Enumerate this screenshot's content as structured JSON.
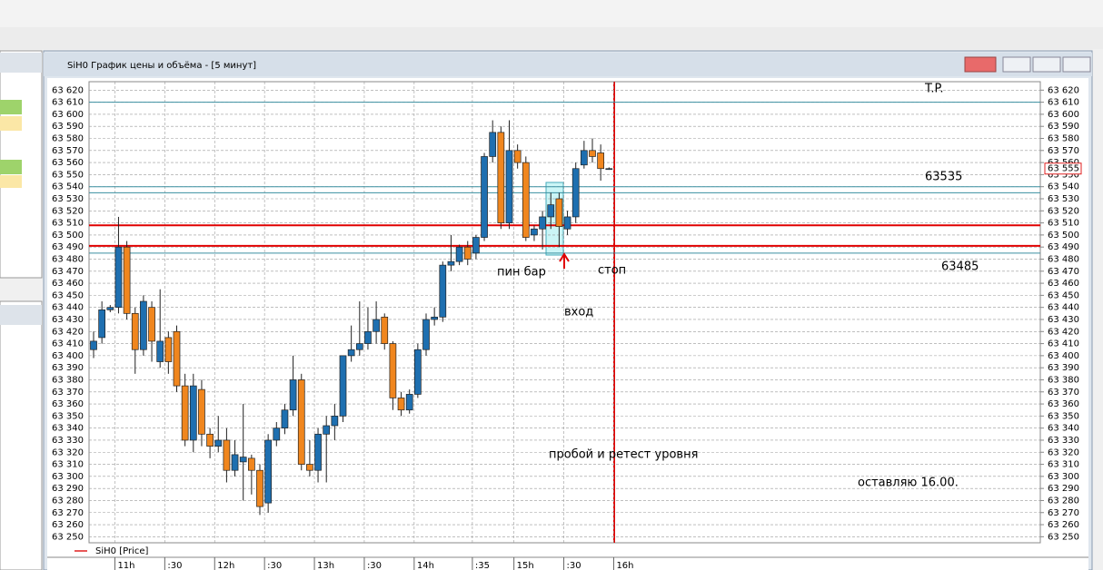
{
  "window_title": "SiH0 График цены и объёма - [5 минут]",
  "chart_data": {
    "type": "candlestick",
    "series": [
      {
        "name": "SiH0 [Price]",
        "color": "#e02020",
        "up_color": "#1e6fb0",
        "down_color": "#f0861e",
        "open": [
          63405,
          63415,
          63438,
          63440,
          63490,
          63435,
          63405,
          63440,
          63395,
          63415,
          63420,
          63375,
          63330,
          63372,
          63335,
          63325,
          63330,
          63305,
          63312,
          63315,
          63305,
          63278,
          63330,
          63340,
          63355,
          63380,
          63310,
          63305,
          63335,
          63342,
          63350,
          63400,
          63405,
          63410,
          63420,
          63432,
          63410,
          63365,
          63355,
          63368,
          63405,
          63430,
          63432,
          63475,
          63478,
          63490,
          63485,
          63498,
          63565,
          63585,
          63510,
          63570,
          63560,
          63500,
          63505,
          63515,
          63530,
          63505,
          63515,
          63558,
          63570,
          63568,
          63555,
          null
        ],
        "high": [
          63420,
          63445,
          63442,
          63515,
          63495,
          63440,
          63450,
          63445,
          63455,
          63420,
          63425,
          63385,
          63385,
          63380,
          63340,
          63350,
          63340,
          63330,
          63360,
          63318,
          63310,
          63335,
          63345,
          63360,
          63400,
          63385,
          63330,
          63340,
          63350,
          63360,
          63400,
          63425,
          63445,
          63440,
          63445,
          63435,
          63412,
          63370,
          63372,
          63410,
          63435,
          63440,
          63478,
          63500,
          63492,
          63495,
          63500,
          63568,
          63595,
          63590,
          63595,
          63575,
          63565,
          63508,
          63520,
          63535,
          63535,
          63520,
          63560,
          63578,
          63580,
          63575,
          63556,
          null
        ],
        "low": [
          63398,
          63410,
          63436,
          63435,
          63430,
          63385,
          63400,
          63395,
          63390,
          63385,
          63370,
          63325,
          63320,
          63325,
          63315,
          63320,
          63295,
          63300,
          63280,
          63285,
          63268,
          63270,
          63325,
          63335,
          63350,
          63305,
          63300,
          63295,
          63295,
          63330,
          63345,
          63395,
          63400,
          63405,
          63410,
          63405,
          63355,
          63350,
          63352,
          63365,
          63400,
          63425,
          63428,
          63470,
          63475,
          63475,
          63480,
          63495,
          63560,
          63505,
          63505,
          63555,
          63495,
          63495,
          63488,
          63505,
          63490,
          63500,
          63510,
          63555,
          63560,
          63545,
          63554,
          null
        ],
        "close": [
          63412,
          63438,
          63440,
          63490,
          63435,
          63405,
          63445,
          63412,
          63412,
          63395,
          63375,
          63330,
          63375,
          63335,
          63325,
          63330,
          63305,
          63318,
          63316,
          63305,
          63275,
          63330,
          63340,
          63355,
          63380,
          63310,
          63305,
          63335,
          63342,
          63350,
          63400,
          63405,
          63410,
          63420,
          63430,
          63410,
          63365,
          63355,
          63368,
          63405,
          63430,
          63432,
          63475,
          63478,
          63490,
          63480,
          63498,
          63565,
          63585,
          63510,
          63570,
          63560,
          63498,
          63505,
          63515,
          63525,
          63507,
          63515,
          63555,
          63570,
          63565,
          63555,
          63555,
          null
        ]
      }
    ],
    "categories": [
      null,
      null,
      null,
      "11h",
      null,
      null,
      null,
      null,
      null,
      ":30",
      null,
      null,
      null,
      null,
      null,
      "12h",
      null,
      null,
      null,
      null,
      null,
      ":30",
      null,
      null,
      null,
      null,
      null,
      "13h",
      null,
      null,
      null,
      null,
      null,
      ":30",
      null,
      null,
      null,
      null,
      null,
      "14h",
      null,
      null,
      null,
      null,
      null,
      null,
      ":35",
      null,
      null,
      null,
      null,
      "15h",
      null,
      null,
      null,
      null,
      null,
      ":30",
      null,
      null,
      null,
      null,
      null,
      "16h"
    ],
    "ylim": [
      63245,
      63627
    ],
    "yticks": [
      {
        "value": 63250,
        "label": "63 250"
      },
      {
        "value": 63260,
        "label": "63 260"
      },
      {
        "value": 63270,
        "label": "63 270"
      },
      {
        "value": 63280,
        "label": "63 280"
      },
      {
        "value": 63290,
        "label": "63 290"
      },
      {
        "value": 63300,
        "label": "63 300"
      },
      {
        "value": 63310,
        "label": "63 310"
      },
      {
        "value": 63320,
        "label": "63 320"
      },
      {
        "value": 63330,
        "label": "63 330"
      },
      {
        "value": 63340,
        "label": "63 340"
      },
      {
        "value": 63350,
        "label": "63 350"
      },
      {
        "value": 63360,
        "label": "63 360"
      },
      {
        "value": 63370,
        "label": "63 370"
      },
      {
        "value": 63380,
        "label": "63 380"
      },
      {
        "value": 63390,
        "label": "63 390"
      },
      {
        "value": 63400,
        "label": "63 400"
      },
      {
        "value": 63410,
        "label": "63 410"
      },
      {
        "value": 63420,
        "label": "63 420"
      },
      {
        "value": 63430,
        "label": "63 430"
      },
      {
        "value": 63440,
        "label": "63 440"
      },
      {
        "value": 63450,
        "label": "63 450"
      },
      {
        "value": 63460,
        "label": "63 460"
      },
      {
        "value": 63470,
        "label": "63 470"
      },
      {
        "value": 63480,
        "label": "63 480"
      },
      {
        "value": 63490,
        "label": "63 490"
      },
      {
        "value": 63500,
        "label": "63 500"
      },
      {
        "value": 63510,
        "label": "63 510"
      },
      {
        "value": 63520,
        "label": "63 520"
      },
      {
        "value": 63530,
        "label": "63 530"
      },
      {
        "value": 63540,
        "label": "63 540"
      },
      {
        "value": 63550,
        "label": "63 550"
      },
      {
        "value": 63560,
        "label": "63 560"
      },
      {
        "value": 63570,
        "label": "63 570"
      },
      {
        "value": 63580,
        "label": "63 580"
      },
      {
        "value": 63590,
        "label": "63 590"
      },
      {
        "value": 63600,
        "label": "63 600"
      },
      {
        "value": 63610,
        "label": "63 610"
      },
      {
        "value": 63620,
        "label": "63 620"
      }
    ],
    "grid": true,
    "last_price": {
      "value": 63555,
      "label": "63 555"
    },
    "levels": [
      {
        "value": 63610,
        "color": "#3a8fa0"
      },
      {
        "value": 63540,
        "color": "#3a8fa0"
      },
      {
        "value": 63535,
        "color": "#3a8fa0"
      },
      {
        "value": 63485,
        "color": "#3a8fa0"
      },
      {
        "value": 63508,
        "color": "#e00000"
      },
      {
        "value": 63491,
        "color": "#e00000"
      }
    ],
    "annotations": [
      {
        "text": "T.P.",
        "color": "#3a8fc0"
      },
      {
        "text": "63535",
        "color": "#3a8fc0"
      },
      {
        "text": "63485",
        "color": "#3a8fc0"
      },
      {
        "text": "стоп",
        "color": "#3a8fc0"
      },
      {
        "text": "пин бар",
        "color": "#a02020"
      },
      {
        "text": "вход",
        "color": "#e02020"
      },
      {
        "text": "пробой и ретест уровня",
        "color": "#a02020"
      },
      {
        "text": "оставляю 16.00.",
        "color": "#3a8fc0"
      }
    ]
  }
}
